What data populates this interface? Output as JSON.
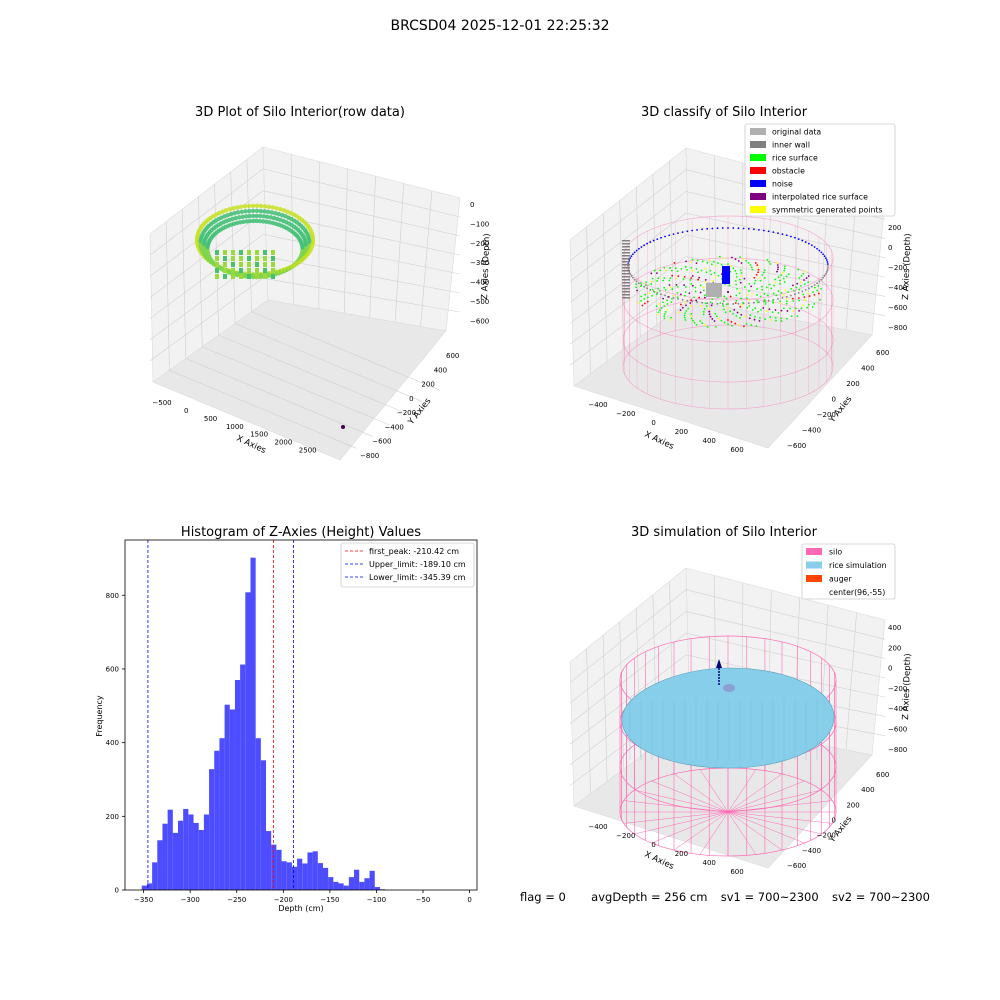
{
  "suptitle": "BRCSD04 2025-12-01 22:25:32",
  "footer": {
    "flag": "flag = 0",
    "avg_depth": "avgDepth = 256 cm",
    "sv1": "sv1 = 700~2300",
    "sv2": "sv2 = 700~2300"
  },
  "colors": {
    "hist_bar": "#4d4dff",
    "peak_line": "#ff0000",
    "limit_line": "#0000ff",
    "silo": "#ff69b4",
    "rice_sim": "#87ceeb",
    "auger": "#ff4500",
    "gray": "#b0b0b0",
    "inner_wall": "#808080",
    "rice_surface": "#00ff00",
    "obstacle": "#ff0000",
    "noise": "#0000ff",
    "interpolated": "#800080",
    "symmetric": "#ffff00"
  },
  "chart_data": [
    {
      "id": "raw",
      "type": "scatter",
      "projection": "3d",
      "title": "3D Plot of Silo Interior(row data)",
      "xlabel": "X Axies",
      "ylabel": "Y Axies",
      "zlabel": "Z Axies (Depth)",
      "x_ticks": [
        "−500",
        "0",
        "500",
        "1000",
        "1500",
        "2000",
        "2500"
      ],
      "y_ticks": [
        "600",
        "400",
        "200",
        "0",
        "−200",
        "−400",
        "−600",
        "−800"
      ],
      "z_ticks": [
        "0",
        "−100",
        "−200",
        "−300",
        "−400",
        "−500",
        "−600"
      ],
      "grid": true
    },
    {
      "id": "classify",
      "type": "scatter",
      "projection": "3d",
      "title": "3D classify of Silo Interior",
      "xlabel": "X Axies",
      "ylabel": "Y Axies",
      "zlabel": "Z Axies (Depth)",
      "x_ticks": [
        "−400",
        "−200",
        "0",
        "200",
        "400",
        "600"
      ],
      "y_ticks": [
        "600",
        "400",
        "200",
        "0",
        "−200",
        "−400",
        "−600"
      ],
      "z_ticks": [
        "200",
        "0",
        "−200",
        "−400",
        "−600",
        "−800"
      ],
      "legend_position": "top-right",
      "legend": [
        {
          "label": "original data",
          "color": "#b0b0b0"
        },
        {
          "label": "inner wall",
          "color": "#808080"
        },
        {
          "label": "rice surface",
          "color": "#00ff00"
        },
        {
          "label": "obstacle",
          "color": "#ff0000"
        },
        {
          "label": "noise",
          "color": "#0000ff"
        },
        {
          "label": "interpolated rice surface",
          "color": "#800080"
        },
        {
          "label": "symmetric generated points",
          "color": "#ffff00"
        }
      ],
      "grid": true
    },
    {
      "id": "hist",
      "type": "bar",
      "title": "Histogram of Z-Axies (Height) Values",
      "xlabel": "Depth (cm)",
      "ylabel": "Frequency",
      "xlim": [
        -370,
        8
      ],
      "ylim": [
        0,
        950
      ],
      "x_ticks": [
        -350,
        -300,
        -250,
        -200,
        -150,
        -100,
        -50,
        0
      ],
      "x_tick_labels": [
        "−350",
        "−300",
        "−250",
        "−200",
        "−150",
        "−100",
        "−50",
        "0"
      ],
      "y_ticks": [
        0,
        200,
        400,
        600,
        800
      ],
      "y_tick_labels": [
        "0",
        "200",
        "400",
        "600",
        "800"
      ],
      "bins_start": -352.0,
      "bin_width": 5.56,
      "values": [
        12,
        18,
        75,
        135,
        180,
        218,
        155,
        188,
        220,
        205,
        182,
        163,
        205,
        328,
        378,
        412,
        503,
        490,
        570,
        612,
        808,
        902,
        412,
        352,
        160,
        123,
        109,
        78,
        75,
        63,
        85,
        72,
        102,
        105,
        73,
        60,
        35,
        22,
        18,
        12,
        35,
        55,
        22,
        32,
        52,
        8,
        2
      ],
      "vlines": [
        {
          "x": -210.42,
          "label": "first_peak: -210.42 cm",
          "color": "#ff0000"
        },
        {
          "x": -189.1,
          "label": "Upper_limit: -189.10 cm",
          "color": "#0000ff"
        },
        {
          "x": -345.39,
          "label": "Lower_limit: -345.39 cm",
          "color": "#0000ff"
        }
      ],
      "legend_position": "top-right",
      "grid": false
    },
    {
      "id": "sim",
      "type": "scatter",
      "projection": "3d",
      "title": "3D simulation of Silo Interior",
      "xlabel": "X Axies",
      "ylabel": "Y Axies",
      "zlabel": "Z Axies (Depth)",
      "x_ticks": [
        "−400",
        "−200",
        "0",
        "200",
        "400",
        "600"
      ],
      "y_ticks": [
        "600",
        "400",
        "200",
        "0",
        "−200",
        "−400",
        "−600"
      ],
      "z_ticks": [
        "400",
        "200",
        "0",
        "−200",
        "−400",
        "−600",
        "−800"
      ],
      "legend_position": "top-right",
      "legend": [
        {
          "label": "silo",
          "color": "#ff69b4"
        },
        {
          "label": "rice simulation",
          "color": "#87ceeb"
        },
        {
          "label": "auger",
          "color": "#ff4500"
        },
        {
          "label": "center(96,-55)",
          "color": ""
        }
      ],
      "grid": true
    }
  ]
}
